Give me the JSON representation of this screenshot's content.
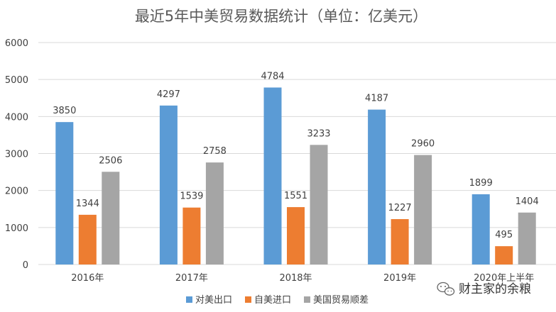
{
  "chart_data": {
    "type": "bar",
    "title": "最近5年中美贸易数据统计（单位：亿美元）",
    "categories": [
      "2016年",
      "2017年",
      "2018年",
      "2019年",
      "2020年上半年"
    ],
    "series": [
      {
        "name": "对美出口",
        "color": "#5B9BD5",
        "values": [
          3850,
          4297,
          4784,
          4187,
          1899
        ]
      },
      {
        "name": "自美进口",
        "color": "#ED7D31",
        "values": [
          1344,
          1539,
          1551,
          1227,
          495
        ]
      },
      {
        "name": "美国贸易顺差",
        "color": "#A5A5A5",
        "values": [
          2506,
          2758,
          3233,
          2960,
          1404
        ]
      }
    ],
    "ylim": [
      0,
      6000
    ],
    "yticks": [
      0,
      1000,
      2000,
      3000,
      4000,
      5000,
      6000
    ],
    "grid": true,
    "legend_position": "bottom"
  },
  "watermark": {
    "icon": "wechat-icon",
    "text": "财主家的余粮"
  }
}
